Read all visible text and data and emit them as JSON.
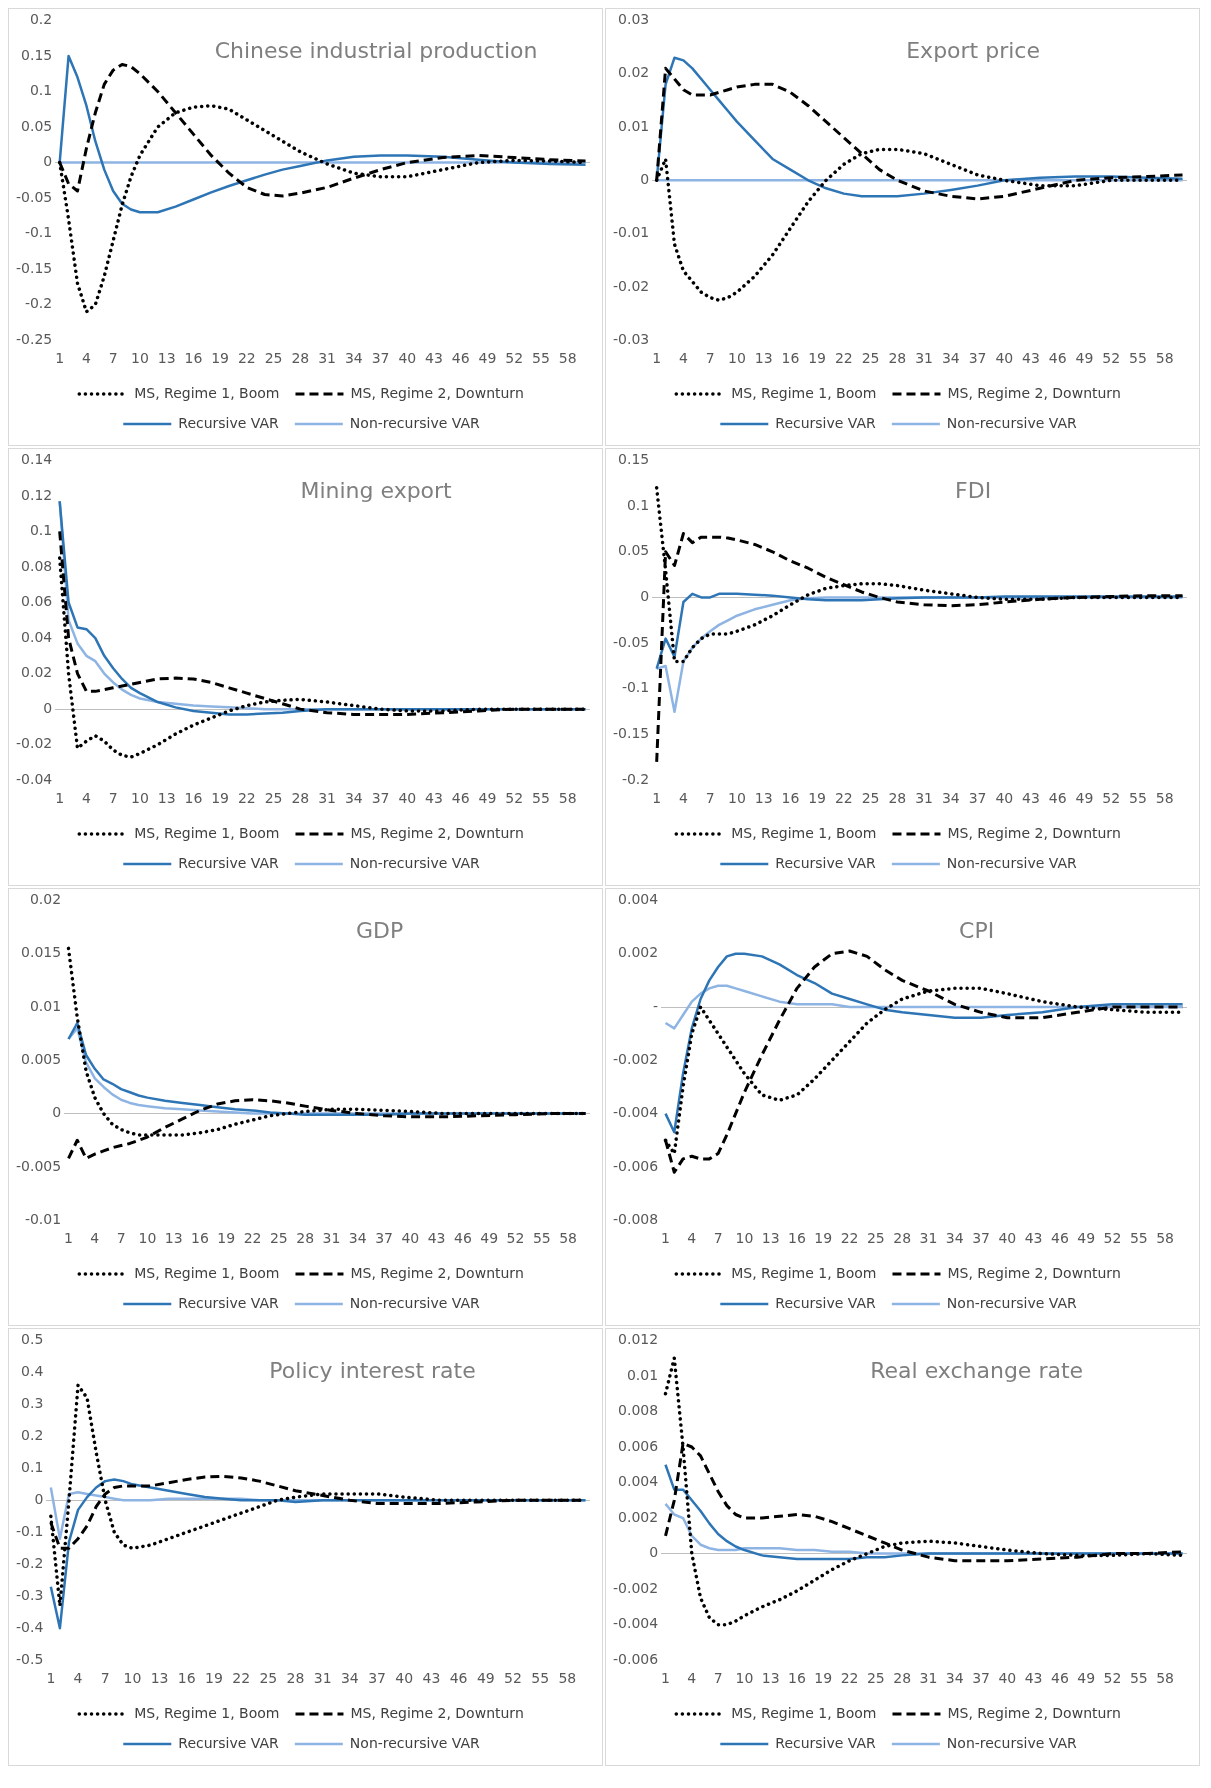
{
  "chart_data": [
    {
      "type": "line",
      "title": "Chinese industrial production",
      "legend": "bottom",
      "x": [
        1,
        2,
        3,
        4,
        5,
        6,
        7,
        8,
        9,
        10,
        12,
        14,
        16,
        18,
        20,
        22,
        24,
        26,
        28,
        31,
        34,
        37,
        40,
        44,
        48,
        52,
        56,
        60
      ],
      "xlim": [
        0.5,
        60.5
      ],
      "xticks": [
        1,
        4,
        7,
        10,
        13,
        16,
        19,
        22,
        25,
        28,
        31,
        34,
        37,
        40,
        43,
        46,
        49,
        52,
        55,
        58
      ],
      "ylim": [
        -0.25,
        0.2
      ],
      "yticks": [
        -0.25,
        -0.2,
        -0.15,
        -0.1,
        -0.05,
        0,
        0.05,
        0.1,
        0.15,
        0.2
      ],
      "series": [
        {
          "name": "MS, Regime 1, Boom",
          "color": "#000000",
          "line_style": "dotted",
          "values": [
            0,
            -0.08,
            -0.17,
            -0.21,
            -0.2,
            -0.16,
            -0.11,
            -0.06,
            -0.02,
            0.01,
            0.05,
            0.07,
            0.078,
            0.08,
            0.075,
            0.06,
            0.045,
            0.03,
            0.015,
            -0.002,
            -0.015,
            -0.02,
            -0.02,
            -0.01,
            0,
            0.003,
            0.002,
            0
          ]
        },
        {
          "name": "MS, Regime 2, Downturn",
          "color": "#000000",
          "line_style": "dashed",
          "values": [
            0,
            -0.03,
            -0.04,
            0.02,
            0.07,
            0.11,
            0.13,
            0.138,
            0.135,
            0.125,
            0.1,
            0.07,
            0.04,
            0.01,
            -0.015,
            -0.035,
            -0.045,
            -0.047,
            -0.043,
            -0.035,
            -0.022,
            -0.01,
            0,
            0.007,
            0.01,
            0.007,
            0.004,
            0.002
          ]
        },
        {
          "name": "Recursive VAR",
          "color": "#2e75b6",
          "line_style": "solid",
          "values": [
            0,
            0.15,
            0.12,
            0.08,
            0.03,
            -0.01,
            -0.04,
            -0.058,
            -0.066,
            -0.07,
            -0.07,
            -0.062,
            -0.052,
            -0.042,
            -0.033,
            -0.025,
            -0.017,
            -0.01,
            -0.005,
            0.003,
            0.008,
            0.01,
            0.01,
            0.008,
            0.004,
            0,
            -0.002,
            -0.003
          ]
        },
        {
          "name": "Non-recursive VAR",
          "color": "#8eb4e3",
          "line_style": "solid",
          "values": [
            0,
            0,
            0,
            0,
            0,
            0,
            0,
            0,
            0,
            0,
            0,
            0,
            0,
            0,
            0,
            0,
            0,
            0,
            0,
            0,
            0,
            0,
            0,
            0,
            0,
            0,
            0,
            0
          ]
        }
      ]
    },
    {
      "type": "line",
      "title": "Export price",
      "legend": "bottom",
      "x": [
        1,
        2,
        3,
        4,
        5,
        6,
        7,
        8,
        9,
        10,
        12,
        14,
        16,
        18,
        20,
        22,
        24,
        26,
        28,
        31,
        34,
        37,
        40,
        44,
        48,
        52,
        56,
        60
      ],
      "xlim": [
        0.5,
        60.5
      ],
      "xticks": [
        1,
        4,
        7,
        10,
        13,
        16,
        19,
        22,
        25,
        28,
        31,
        34,
        37,
        40,
        43,
        46,
        49,
        52,
        55,
        58
      ],
      "ylim": [
        -0.03,
        0.03
      ],
      "yticks": [
        -0.03,
        -0.02,
        -0.01,
        0,
        0.01,
        0.02,
        0.03
      ],
      "series": [
        {
          "name": "MS, Regime 1, Boom",
          "color": "#000000",
          "line_style": "dotted",
          "values": [
            0,
            0.004,
            -0.012,
            -0.017,
            -0.019,
            -0.021,
            -0.022,
            -0.0225,
            -0.022,
            -0.021,
            -0.018,
            -0.014,
            -0.009,
            -0.004,
            0,
            0.003,
            0.005,
            0.0058,
            0.0058,
            0.005,
            0.003,
            0.001,
            0,
            -0.001,
            -0.001,
            0,
            0,
            0
          ]
        },
        {
          "name": "MS, Regime 2, Downturn",
          "color": "#000000",
          "line_style": "dashed",
          "values": [
            0,
            0.021,
            0.019,
            0.017,
            0.016,
            0.016,
            0.016,
            0.0165,
            0.017,
            0.0175,
            0.018,
            0.018,
            0.0165,
            0.014,
            0.011,
            0.008,
            0.005,
            0.002,
            0,
            -0.002,
            -0.003,
            -0.0035,
            -0.003,
            -0.0015,
            0,
            0.0005,
            0.0007,
            0.001
          ]
        },
        {
          "name": "Recursive VAR",
          "color": "#2e75b6",
          "line_style": "solid",
          "values": [
            0,
            0.018,
            0.023,
            0.0225,
            0.021,
            0.019,
            0.017,
            0.015,
            0.013,
            0.011,
            0.0075,
            0.004,
            0.002,
            0,
            -0.0015,
            -0.0025,
            -0.003,
            -0.003,
            -0.003,
            -0.0025,
            -0.0018,
            -0.001,
            0,
            0.0005,
            0.0007,
            0.0007,
            0.0005,
            0.0003
          ]
        },
        {
          "name": "Non-recursive VAR",
          "color": "#8eb4e3",
          "line_style": "solid",
          "values": [
            0,
            0,
            0,
            0,
            0,
            0,
            0,
            0,
            0,
            0,
            0,
            0,
            0,
            0,
            0,
            0,
            0,
            0,
            0,
            0,
            0,
            0,
            0,
            0,
            0,
            0,
            0,
            0
          ]
        }
      ]
    },
    {
      "type": "line",
      "title": "Mining export",
      "legend": "bottom",
      "x": [
        1,
        2,
        3,
        4,
        5,
        6,
        7,
        8,
        9,
        10,
        12,
        14,
        16,
        18,
        20,
        22,
        24,
        26,
        28,
        31,
        34,
        37,
        40,
        44,
        48,
        52,
        56,
        60
      ],
      "xlim": [
        0.5,
        60.5
      ],
      "xticks": [
        1,
        4,
        7,
        10,
        13,
        16,
        19,
        22,
        25,
        28,
        31,
        34,
        37,
        40,
        43,
        46,
        49,
        52,
        55,
        58
      ],
      "ylim": [
        -0.04,
        0.14
      ],
      "yticks": [
        -0.04,
        -0.02,
        0,
        0.02,
        0.04,
        0.06,
        0.08,
        0.1,
        0.12,
        0.14
      ],
      "series": [
        {
          "name": "MS, Regime 1, Boom",
          "color": "#000000",
          "line_style": "dotted",
          "values": [
            0.085,
            0.02,
            -0.022,
            -0.018,
            -0.015,
            -0.018,
            -0.023,
            -0.026,
            -0.027,
            -0.025,
            -0.02,
            -0.014,
            -0.009,
            -0.005,
            -0.001,
            0.002,
            0.004,
            0.005,
            0.0055,
            0.004,
            0.002,
            0,
            -0.001,
            -0.001,
            0,
            0,
            0,
            0
          ]
        },
        {
          "name": "MS, Regime 2, Downturn",
          "color": "#000000",
          "line_style": "dashed",
          "values": [
            0.1,
            0.04,
            0.02,
            0.01,
            0.01,
            0.011,
            0.012,
            0.013,
            0.014,
            0.015,
            0.017,
            0.0175,
            0.017,
            0.015,
            0.012,
            0.009,
            0.006,
            0.003,
            0,
            -0.002,
            -0.003,
            -0.003,
            -0.003,
            -0.002,
            -0.001,
            0,
            0,
            0
          ]
        },
        {
          "name": "Recursive VAR",
          "color": "#2e75b6",
          "line_style": "solid",
          "values": [
            0.117,
            0.06,
            0.046,
            0.045,
            0.04,
            0.03,
            0.023,
            0.017,
            0.012,
            0.009,
            0.004,
            0.001,
            -0.001,
            -0.002,
            -0.003,
            -0.003,
            -0.0025,
            -0.002,
            -0.001,
            0,
            0,
            0,
            0,
            0,
            0,
            0,
            0,
            0
          ]
        },
        {
          "name": "Non-recursive VAR",
          "color": "#8eb4e3",
          "line_style": "solid",
          "values": [
            0.117,
            0.05,
            0.037,
            0.03,
            0.027,
            0.02,
            0.015,
            0.011,
            0.008,
            0.006,
            0.004,
            0.003,
            0.002,
            0.0015,
            0.001,
            0.0005,
            0,
            0,
            0,
            0,
            0,
            0,
            0,
            0,
            0,
            0,
            0,
            0
          ]
        }
      ]
    },
    {
      "type": "line",
      "title": "FDI",
      "legend": "bottom",
      "x": [
        1,
        2,
        3,
        4,
        5,
        6,
        7,
        8,
        9,
        10,
        12,
        14,
        16,
        18,
        20,
        22,
        24,
        26,
        28,
        31,
        34,
        37,
        40,
        44,
        48,
        52,
        56,
        60
      ],
      "xlim": [
        0.5,
        60.5
      ],
      "xticks": [
        1,
        4,
        7,
        10,
        13,
        16,
        19,
        22,
        25,
        28,
        31,
        34,
        37,
        40,
        43,
        46,
        49,
        52,
        55,
        58
      ],
      "ylim": [
        -0.2,
        0.15
      ],
      "yticks": [
        -0.2,
        -0.15,
        -0.1,
        -0.05,
        0,
        0.05,
        0.1,
        0.15
      ],
      "series": [
        {
          "name": "MS, Regime 1, Boom",
          "color": "#000000",
          "line_style": "dotted",
          "values": [
            0.12,
            0.03,
            -0.07,
            -0.07,
            -0.055,
            -0.045,
            -0.04,
            -0.04,
            -0.04,
            -0.037,
            -0.03,
            -0.02,
            -0.008,
            0.003,
            0.01,
            0.013,
            0.015,
            0.015,
            0.013,
            0.008,
            0.004,
            0,
            -0.002,
            -0.002,
            0,
            0,
            0,
            0
          ]
        },
        {
          "name": "MS, Regime 2, Downturn",
          "color": "#000000",
          "line_style": "dashed",
          "values": [
            -0.18,
            0.05,
            0.035,
            0.07,
            0.06,
            0.066,
            0.066,
            0.066,
            0.065,
            0.063,
            0.058,
            0.05,
            0.04,
            0.032,
            0.022,
            0.014,
            0.006,
            0,
            -0.005,
            -0.008,
            -0.009,
            -0.008,
            -0.005,
            -0.002,
            0,
            0.001,
            0.002,
            0.002
          ]
        },
        {
          "name": "Recursive VAR",
          "color": "#2e75b6",
          "line_style": "solid",
          "values": [
            -0.078,
            -0.045,
            -0.065,
            -0.005,
            0.004,
            0,
            0,
            0.004,
            0.004,
            0.004,
            0.003,
            0.002,
            0,
            -0.002,
            -0.003,
            -0.003,
            -0.003,
            -0.002,
            -0.001,
            0,
            0,
            0,
            0.001,
            0.001,
            0.001,
            0.001,
            0.001,
            0.001
          ]
        },
        {
          "name": "Non-recursive VAR",
          "color": "#8eb4e3",
          "line_style": "solid",
          "values": [
            -0.078,
            -0.075,
            -0.125,
            -0.07,
            -0.055,
            -0.045,
            -0.037,
            -0.03,
            -0.025,
            -0.02,
            -0.013,
            -0.008,
            -0.003,
            -0.001,
            0,
            0,
            0,
            0,
            0,
            0,
            0,
            0,
            0,
            0,
            0,
            0,
            0,
            0
          ]
        }
      ]
    },
    {
      "type": "line",
      "title": "GDP",
      "legend": "bottom",
      "x": [
        1,
        2,
        3,
        4,
        5,
        6,
        7,
        8,
        9,
        10,
        12,
        14,
        16,
        18,
        20,
        22,
        24,
        26,
        28,
        31,
        34,
        37,
        40,
        44,
        48,
        52,
        56,
        60
      ],
      "xlim": [
        0.5,
        60.5
      ],
      "xticks": [
        1,
        4,
        7,
        10,
        13,
        16,
        19,
        22,
        25,
        28,
        31,
        34,
        37,
        40,
        43,
        46,
        49,
        52,
        55,
        58
      ],
      "ylim": [
        -0.01,
        0.02
      ],
      "yticks": [
        -0.01,
        -0.005,
        0,
        0.005,
        0.01,
        0.015,
        0.02
      ],
      "series": [
        {
          "name": "MS, Regime 1, Boom",
          "color": "#000000",
          "line_style": "dotted",
          "values": [
            0.0155,
            0.009,
            0.004,
            0.0015,
            0,
            -0.001,
            -0.0015,
            -0.0018,
            -0.002,
            -0.002,
            -0.002,
            -0.002,
            -0.0018,
            -0.0015,
            -0.001,
            -0.0006,
            -0.0002,
            0,
            0.0002,
            0.0004,
            0.0004,
            0.0003,
            0.0002,
            0,
            0,
            0,
            0,
            0
          ]
        },
        {
          "name": "MS, Regime 2, Downturn",
          "color": "#000000",
          "line_style": "dashed",
          "values": [
            -0.0042,
            -0.0025,
            -0.0042,
            -0.0038,
            -0.0035,
            -0.0032,
            -0.003,
            -0.0028,
            -0.0025,
            -0.0022,
            -0.0013,
            -0.0005,
            0.0003,
            0.0009,
            0.0012,
            0.0013,
            0.0012,
            0.001,
            0.0007,
            0.0003,
            0,
            -0.0002,
            -0.0003,
            -0.0003,
            -0.0002,
            -0.0001,
            0,
            0
          ]
        },
        {
          "name": "Recursive VAR",
          "color": "#2e75b6",
          "line_style": "solid",
          "values": [
            0.007,
            0.0085,
            0.0055,
            0.0042,
            0.0032,
            0.0028,
            0.0023,
            0.002,
            0.0017,
            0.0015,
            0.0012,
            0.001,
            0.0008,
            0.0006,
            0.0004,
            0.0003,
            0.0001,
            0,
            -0.0001,
            -0.0001,
            -0.0001,
            -0.0001,
            0,
            0,
            0,
            0,
            0,
            0
          ]
        },
        {
          "name": "Non-recursive VAR",
          "color": "#8eb4e3",
          "line_style": "solid",
          "values": [
            0.007,
            0.008,
            0.0048,
            0.0033,
            0.0025,
            0.0018,
            0.0013,
            0.001,
            0.0008,
            0.0007,
            0.0005,
            0.0004,
            0.0003,
            0.0002,
            0.0001,
            0,
            0,
            0,
            0,
            0,
            0,
            0,
            0,
            0,
            0,
            0,
            0,
            0
          ]
        }
      ]
    },
    {
      "type": "line",
      "title": "CPI",
      "legend": "bottom",
      "x": [
        1,
        2,
        3,
        4,
        5,
        6,
        7,
        8,
        9,
        10,
        12,
        14,
        16,
        18,
        20,
        22,
        24,
        26,
        28,
        31,
        34,
        37,
        40,
        44,
        48,
        52,
        56,
        60
      ],
      "xlim": [
        0.5,
        60.5
      ],
      "xticks": [
        1,
        4,
        7,
        10,
        13,
        16,
        19,
        22,
        25,
        28,
        31,
        34,
        37,
        40,
        43,
        46,
        49,
        52,
        55,
        58
      ],
      "ylim": [
        -0.008,
        0.004
      ],
      "yticks": [
        -0.008,
        -0.006,
        -0.004,
        -0.002,
        {
          "value": 0,
          "label": "-"
        },
        0.002,
        0.004
      ],
      "series": [
        {
          "name": "MS, Regime 1, Boom",
          "color": "#000000",
          "line_style": "dotted",
          "values": [
            -0.005,
            -0.0055,
            -0.003,
            -0.001,
            0,
            -0.0005,
            -0.001,
            -0.0015,
            -0.002,
            -0.0025,
            -0.0033,
            -0.0035,
            -0.0033,
            -0.0027,
            -0.002,
            -0.0013,
            -0.0006,
            -0.0001,
            0.0003,
            0.0006,
            0.0007,
            0.0007,
            0.0005,
            0.0002,
            0,
            -0.0001,
            -0.0002,
            -0.0002
          ]
        },
        {
          "name": "MS, Regime 2, Downturn",
          "color": "#000000",
          "line_style": "dashed",
          "values": [
            -0.005,
            -0.0062,
            -0.0057,
            -0.0056,
            -0.0057,
            -0.0057,
            -0.0055,
            -0.0048,
            -0.004,
            -0.0032,
            -0.0018,
            -0.0005,
            0.0007,
            0.0015,
            0.002,
            0.0021,
            0.0019,
            0.0014,
            0.001,
            0.0006,
            0.0001,
            -0.0002,
            -0.0004,
            -0.0004,
            -0.0002,
            0,
            0,
            0
          ]
        },
        {
          "name": "Recursive VAR",
          "color": "#2e75b6",
          "line_style": "solid",
          "values": [
            -0.004,
            -0.0047,
            -0.0025,
            -0.0008,
            0.0003,
            0.001,
            0.0015,
            0.0019,
            0.002,
            0.002,
            0.0019,
            0.0016,
            0.0012,
            0.0009,
            0.0005,
            0.0003,
            0.0001,
            -0.0001,
            -0.0002,
            -0.0003,
            -0.0004,
            -0.0004,
            -0.0003,
            -0.0002,
            0,
            0.0001,
            0.0001,
            0.0001
          ]
        },
        {
          "name": "Non-recursive VAR",
          "color": "#8eb4e3",
          "line_style": "solid",
          "values": [
            -0.0006,
            -0.0008,
            -0.0003,
            0.0002,
            0.0005,
            0.0007,
            0.0008,
            0.0008,
            0.0007,
            0.0006,
            0.0004,
            0.0002,
            0.0001,
            0.0001,
            0.0001,
            0,
            0,
            0,
            0,
            0,
            0,
            0,
            0,
            0,
            0,
            0,
            0,
            0
          ]
        }
      ]
    },
    {
      "type": "line",
      "title": "Policy interest rate",
      "legend": "bottom",
      "x": [
        1,
        2,
        3,
        4,
        5,
        6,
        7,
        8,
        9,
        10,
        12,
        14,
        16,
        18,
        20,
        22,
        24,
        26,
        28,
        31,
        34,
        37,
        40,
        44,
        48,
        52,
        56,
        60
      ],
      "xlim": [
        0.5,
        60.5
      ],
      "xticks": [
        1,
        4,
        7,
        10,
        13,
        16,
        19,
        22,
        25,
        28,
        31,
        34,
        37,
        40,
        43,
        46,
        49,
        52,
        55,
        58
      ],
      "ylim": [
        -0.5,
        0.5
      ],
      "yticks": [
        -0.5,
        -0.4,
        -0.3,
        -0.2,
        -0.1,
        0,
        0.1,
        0.2,
        0.3,
        0.4,
        0.5
      ],
      "series": [
        {
          "name": "MS, Regime 1, Boom",
          "color": "#000000",
          "line_style": "dotted",
          "values": [
            -0.05,
            -0.33,
            0,
            0.36,
            0.32,
            0.15,
            0,
            -0.1,
            -0.14,
            -0.15,
            -0.14,
            -0.12,
            -0.1,
            -0.08,
            -0.06,
            -0.04,
            -0.02,
            0,
            0.01,
            0.02,
            0.02,
            0.02,
            0.01,
            0,
            0,
            0,
            0,
            0
          ]
        },
        {
          "name": "MS, Regime 2, Downturn",
          "color": "#000000",
          "line_style": "dashed",
          "values": [
            -0.07,
            -0.15,
            -0.15,
            -0.12,
            -0.08,
            -0.02,
            0.02,
            0.04,
            0.045,
            0.045,
            0.045,
            0.055,
            0.065,
            0.073,
            0.075,
            0.07,
            0.06,
            0.045,
            0.03,
            0.015,
            0,
            -0.01,
            -0.01,
            -0.01,
            -0.005,
            0,
            0,
            0
          ]
        },
        {
          "name": "Recursive VAR",
          "color": "#2e75b6",
          "line_style": "solid",
          "values": [
            -0.27,
            -0.4,
            -0.13,
            -0.03,
            0.01,
            0.04,
            0.06,
            0.065,
            0.06,
            0.05,
            0.04,
            0.03,
            0.02,
            0.01,
            0.005,
            0,
            0,
            0,
            -0.005,
            0,
            0,
            0,
            0,
            0,
            0,
            0,
            0,
            0
          ]
        },
        {
          "name": "Non-recursive VAR",
          "color": "#8eb4e3",
          "line_style": "solid",
          "values": [
            0.04,
            -0.12,
            0.02,
            0.025,
            0.02,
            0.015,
            0.01,
            0.005,
            0,
            0,
            0,
            0.005,
            0.005,
            0.005,
            0.005,
            0.005,
            0,
            0,
            0,
            0,
            0,
            0,
            0,
            0,
            0,
            0,
            0,
            0
          ]
        }
      ]
    },
    {
      "type": "line",
      "title": "Real exchange rate",
      "legend": "bottom",
      "x": [
        1,
        2,
        3,
        4,
        5,
        6,
        7,
        8,
        9,
        10,
        12,
        14,
        16,
        18,
        20,
        22,
        24,
        26,
        28,
        31,
        34,
        37,
        40,
        44,
        48,
        52,
        56,
        60
      ],
      "xlim": [
        0.5,
        60.5
      ],
      "xticks": [
        1,
        4,
        7,
        10,
        13,
        16,
        19,
        22,
        25,
        28,
        31,
        34,
        37,
        40,
        43,
        46,
        49,
        52,
        55,
        58
      ],
      "ylim": [
        -0.006,
        0.012
      ],
      "yticks": [
        -0.006,
        -0.004,
        -0.002,
        0,
        0.002,
        0.004,
        0.006,
        0.008,
        0.01,
        0.012
      ],
      "series": [
        {
          "name": "MS, Regime 1, Boom",
          "color": "#000000",
          "line_style": "dotted",
          "values": [
            0.009,
            0.011,
            0.006,
            0,
            -0.0025,
            -0.0036,
            -0.004,
            -0.004,
            -0.0038,
            -0.0035,
            -0.003,
            -0.0026,
            -0.0021,
            -0.0015,
            -0.0009,
            -0.0004,
            0,
            0.0004,
            0.0006,
            0.0007,
            0.0006,
            0.0004,
            0.0002,
            0,
            -0.0001,
            -0.0001,
            0,
            -0.0001
          ]
        },
        {
          "name": "MS, Regime 2, Downturn",
          "color": "#000000",
          "line_style": "dashed",
          "values": [
            0.001,
            0.003,
            0.0062,
            0.006,
            0.0055,
            0.0045,
            0.0035,
            0.0027,
            0.0022,
            0.002,
            0.002,
            0.0021,
            0.0022,
            0.0021,
            0.0018,
            0.0014,
            0.001,
            0.0006,
            0.0002,
            -0.0002,
            -0.0004,
            -0.0004,
            -0.0004,
            -0.0003,
            -0.0002,
            0,
            0,
            0.0001
          ]
        },
        {
          "name": "Recursive VAR",
          "color": "#2e75b6",
          "line_style": "solid",
          "values": [
            0.005,
            0.0036,
            0.0036,
            0.003,
            0.0024,
            0.0017,
            0.0011,
            0.0007,
            0.0004,
            0.0002,
            -0.0001,
            -0.0002,
            -0.0003,
            -0.0003,
            -0.0003,
            -0.0003,
            -0.0002,
            -0.0002,
            -0.0001,
            0,
            0,
            0,
            0,
            0,
            0,
            0,
            0,
            0
          ]
        },
        {
          "name": "Non-recursive VAR",
          "color": "#8eb4e3",
          "line_style": "solid",
          "values": [
            0.0028,
            0.0022,
            0.002,
            0.001,
            0.0005,
            0.0003,
            0.0002,
            0.0002,
            0.0002,
            0.0003,
            0.0003,
            0.0003,
            0.0002,
            0.0002,
            0.0001,
            0.0001,
            0,
            0,
            0,
            0,
            0,
            0,
            0,
            0,
            0,
            0,
            0,
            0
          ]
        }
      ]
    }
  ]
}
